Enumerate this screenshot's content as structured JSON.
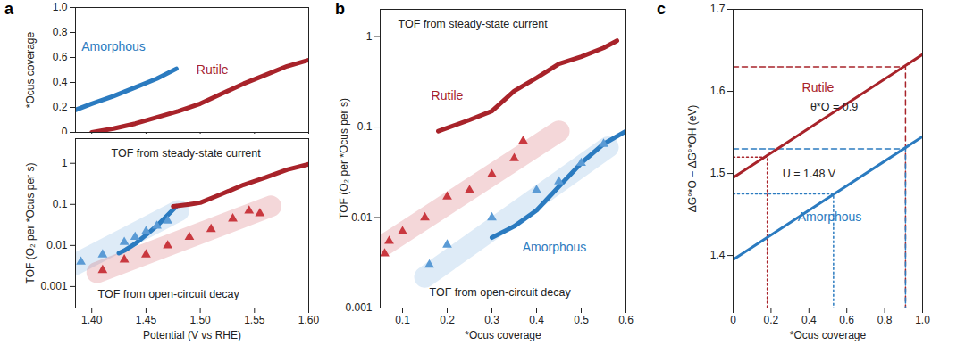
{
  "chart_data": [
    {
      "panel": "a",
      "type": "line",
      "ylabel": "*Ocus coverage",
      "xlim": [
        1.385,
        1.6
      ],
      "xticks": [
        {
          "value": 1.4,
          "label": "1.40"
        },
        {
          "value": 1.45,
          "label": "1.45"
        },
        {
          "value": 1.5,
          "label": "1.50"
        },
        {
          "value": 1.55,
          "label": "1.55"
        },
        {
          "value": 1.6,
          "label": "1.60"
        }
      ],
      "ylim": [
        0,
        1
      ],
      "yticks": [
        0,
        0.2,
        0.4,
        0.6,
        0.8,
        {
          "value": 1,
          "label": "1.0"
        }
      ],
      "tick_labels": "y",
      "series": [
        {
          "name": "Amorphous",
          "color": "#2b7bc0",
          "x": [
            1.385,
            1.4,
            1.42,
            1.44,
            1.46,
            1.478
          ],
          "values": [
            0.18,
            0.23,
            0.29,
            0.36,
            0.43,
            0.51
          ]
        },
        {
          "name": "Rutile",
          "color": "#a8232a",
          "x": [
            1.4,
            1.42,
            1.44,
            1.46,
            1.48,
            1.5,
            1.52,
            1.54,
            1.56,
            1.58,
            1.6
          ],
          "values": [
            0.0,
            0.03,
            0.07,
            0.12,
            0.17,
            0.23,
            0.31,
            0.39,
            0.46,
            0.53,
            0.58
          ]
        }
      ]
    },
    {
      "type": "line",
      "log": "y",
      "xlabel": "Potential (V vs RHE)",
      "ylabel": "TOF (O₂ per *Ocus per s)",
      "xlim": [
        1.385,
        1.6
      ],
      "xticks": [
        {
          "value": 1.4,
          "label": "1.40"
        },
        {
          "value": 1.45,
          "label": "1.45"
        },
        {
          "value": 1.5,
          "label": "1.50"
        },
        {
          "value": 1.55,
          "label": "1.55"
        },
        {
          "value": 1.6,
          "label": "1.60"
        }
      ],
      "ylim": [
        0.0003,
        4
      ],
      "yticks": [
        0.001,
        0.01,
        0.1,
        1
      ],
      "annotations": [
        "TOF from steady-state current",
        "TOF from open-circuit decay"
      ],
      "series": [
        {
          "color": "#2b7bc0",
          "type": "line",
          "x": [
            1.425,
            1.43,
            1.44,
            1.45,
            1.46,
            1.47,
            1.478
          ],
          "values": [
            0.0065,
            0.0075,
            0.011,
            0.018,
            0.03,
            0.055,
            0.09
          ]
        },
        {
          "color": "#a8232a",
          "type": "line",
          "x": [
            1.475,
            1.49,
            1.5,
            1.52,
            1.54,
            1.56,
            1.58,
            1.6
          ],
          "values": [
            0.09,
            0.1,
            0.11,
            0.18,
            0.3,
            0.45,
            0.7,
            0.95
          ]
        },
        {
          "color": "#5b9bd5",
          "type": "scatter",
          "marker": "triangle",
          "x": [
            1.39,
            1.41,
            1.43,
            1.44,
            1.45,
            1.46,
            1.47
          ],
          "values": [
            0.004,
            0.006,
            0.012,
            0.016,
            0.022,
            0.03,
            0.04
          ],
          "band": {
            "x": [
              1.385,
              1.48
            ],
            "values": [
              0.0035,
              0.07
            ]
          }
        },
        {
          "color": "#c9383f",
          "type": "scatter",
          "marker": "triangle",
          "x": [
            1.41,
            1.43,
            1.45,
            1.47,
            1.49,
            1.51,
            1.53,
            1.545,
            1.555
          ],
          "values": [
            0.0025,
            0.0045,
            0.006,
            0.01,
            0.016,
            0.025,
            0.045,
            0.07,
            0.06
          ],
          "band": {
            "x": [
              1.405,
              1.565
            ],
            "values": [
              0.0022,
              0.09
            ]
          }
        }
      ]
    },
    {
      "panel": "b",
      "type": "line",
      "log": "y",
      "xlabel": "*Ocus coverage",
      "ylabel": "TOF (O₂ per *Ocus per s)",
      "xlim": [
        0.05,
        0.6
      ],
      "xticks": [
        0.1,
        0.2,
        0.3,
        0.4,
        0.5,
        0.6
      ],
      "ylim": [
        0.001,
        2
      ],
      "yticks": [
        0.001,
        0.01,
        0.1,
        1
      ],
      "annotations": [
        "TOF from steady-state current",
        "TOF from open-circuit decay"
      ],
      "series": [
        {
          "name": "Rutile",
          "color": "#a8232a",
          "type": "line",
          "x": [
            0.18,
            0.25,
            0.3,
            0.35,
            0.4,
            0.45,
            0.5,
            0.55,
            0.58
          ],
          "values": [
            0.09,
            0.12,
            0.15,
            0.25,
            0.35,
            0.5,
            0.6,
            0.75,
            0.9
          ]
        },
        {
          "name": "Amorphous",
          "color": "#2b7bc0",
          "type": "line",
          "x": [
            0.3,
            0.35,
            0.4,
            0.45,
            0.5,
            0.55,
            0.6
          ],
          "values": [
            0.006,
            0.008,
            0.012,
            0.022,
            0.04,
            0.065,
            0.09
          ]
        },
        {
          "color": "#c9383f",
          "type": "scatter",
          "marker": "triangle",
          "x": [
            0.06,
            0.07,
            0.1,
            0.15,
            0.2,
            0.25,
            0.3,
            0.35,
            0.37
          ],
          "values": [
            0.004,
            0.0055,
            0.007,
            0.01,
            0.017,
            0.02,
            0.03,
            0.045,
            0.07
          ],
          "band": {
            "x": [
              0.06,
              0.45
            ],
            "values": [
              0.005,
              0.09
            ]
          }
        },
        {
          "color": "#5b9bd5",
          "type": "scatter",
          "marker": "triangle",
          "x": [
            0.16,
            0.2,
            0.3,
            0.4,
            0.45,
            0.5,
            0.55
          ],
          "values": [
            0.003,
            0.005,
            0.01,
            0.02,
            0.025,
            0.04,
            0.065
          ],
          "band": {
            "x": [
              0.15,
              0.56
            ],
            "values": [
              0.0022,
              0.06
            ]
          }
        }
      ]
    },
    {
      "panel": "c",
      "type": "line",
      "xlabel": "*Ocus coverage",
      "ylabel": "ΔG°*O − ΔG°*OH (eV)",
      "xlim": [
        0,
        1
      ],
      "xticks": [
        0,
        0.2,
        0.4,
        0.6,
        0.8,
        {
          "value": 1,
          "label": "1.0"
        }
      ],
      "ylim": [
        1.336,
        1.7
      ],
      "yticks": [
        1.4,
        1.5,
        1.6,
        1.7
      ],
      "annotations": [
        "θ*O = 0.9",
        "U = 1.48 V"
      ],
      "series": [
        {
          "name": "Rutile",
          "color": "#a8232a",
          "x": [
            0,
            1
          ],
          "values": [
            1.495,
            1.645
          ]
        },
        {
          "name": "Amorphous",
          "color": "#2b7bc0",
          "x": [
            0,
            1
          ],
          "values": [
            1.395,
            1.545
          ]
        }
      ],
      "reference_lines": [
        {
          "x": 0.91,
          "y": 1.63,
          "color": "#a8232a",
          "line_style": "dashed"
        },
        {
          "x": 0.91,
          "y": 1.53,
          "color": "#2b7bc0",
          "line_style": "dashed"
        },
        {
          "x": 0.18,
          "y": 1.52,
          "color": "#a8232a",
          "line_style": "dotted"
        },
        {
          "x": 0.53,
          "y": 1.475,
          "color": "#2b7bc0",
          "line_style": "dotted"
        }
      ]
    }
  ]
}
